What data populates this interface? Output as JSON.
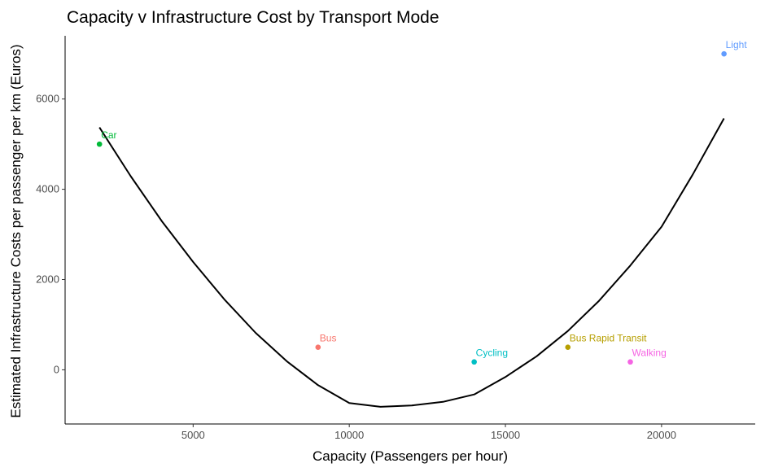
{
  "chart_data": {
    "type": "scatter",
    "title": "Capacity v Infrastructure Cost by Transport Mode",
    "xlabel": "Capacity (Passengers per hour)",
    "ylabel": "Estimated Infrastructure Costs per passenger per km (Euros)",
    "xlim": [
      900,
      23000
    ],
    "ylim": [
      -1200,
      7400
    ],
    "xticks": [
      5000,
      10000,
      15000,
      20000
    ],
    "yticks": [
      0,
      2000,
      4000,
      6000
    ],
    "xtick_labels": [
      "5000",
      "10000",
      "15000",
      "20000"
    ],
    "ytick_labels": [
      "0",
      "2000",
      "4000",
      "6000"
    ],
    "grid": false,
    "legend": "none",
    "points": [
      {
        "label": "Car",
        "x": 2000,
        "y": 5000,
        "color": "#00ba38"
      },
      {
        "label": "Bus",
        "x": 9000,
        "y": 500,
        "color": "#f8766d"
      },
      {
        "label": "Cycling",
        "x": 14000,
        "y": 175,
        "color": "#00bfc4"
      },
      {
        "label": "Bus Rapid Transit",
        "x": 17000,
        "y": 500,
        "color": "#b79f00"
      },
      {
        "label": "Walking",
        "x": 19000,
        "y": 175,
        "color": "#f564e3"
      },
      {
        "label": "Light",
        "x": 22000,
        "y": 7000,
        "color": "#619cff"
      }
    ],
    "fit_curve": {
      "type": "quadratic",
      "color": "#000000",
      "x": [
        2000,
        3000,
        4000,
        5000,
        6000,
        7000,
        8000,
        9000,
        10000,
        11000,
        12000,
        13000,
        14000,
        15000,
        16000,
        17000,
        18000,
        19000,
        20000,
        21000,
        22000
      ],
      "y": [
        5370,
        4290,
        3290,
        2390,
        1560,
        820,
        190,
        -340,
        -735,
        -820,
        -790,
        -710,
        -545,
        -160,
        300,
        860,
        1530,
        2310,
        3170,
        4330,
        5570
      ]
    }
  }
}
